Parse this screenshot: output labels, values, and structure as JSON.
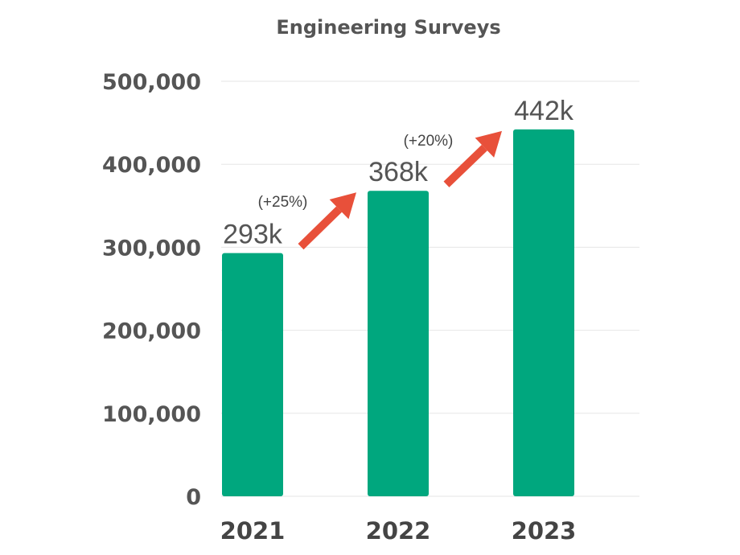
{
  "chart_data": {
    "type": "bar",
    "title": "Engineering Surveys",
    "categories": [
      "2021",
      "2022",
      "2023"
    ],
    "values": [
      293000,
      368000,
      442000
    ],
    "data_labels": [
      "293k",
      "368k",
      "442k"
    ],
    "growth_labels": [
      "(+25%)",
      "(+20%)"
    ],
    "y_ticks": [
      0,
      100000,
      200000,
      300000,
      400000,
      500000
    ],
    "y_tick_labels": [
      "0",
      "100,000",
      "200,000",
      "300,000",
      "400,000",
      "500,000"
    ],
    "ylim": [
      0,
      500000
    ],
    "xlabel": "",
    "ylabel": "",
    "grid": true,
    "legend": "none",
    "colors": {
      "bar": "#00a77e",
      "arrow": "#e8503a",
      "text": "#555555",
      "grid": "#e6e6e6"
    }
  }
}
